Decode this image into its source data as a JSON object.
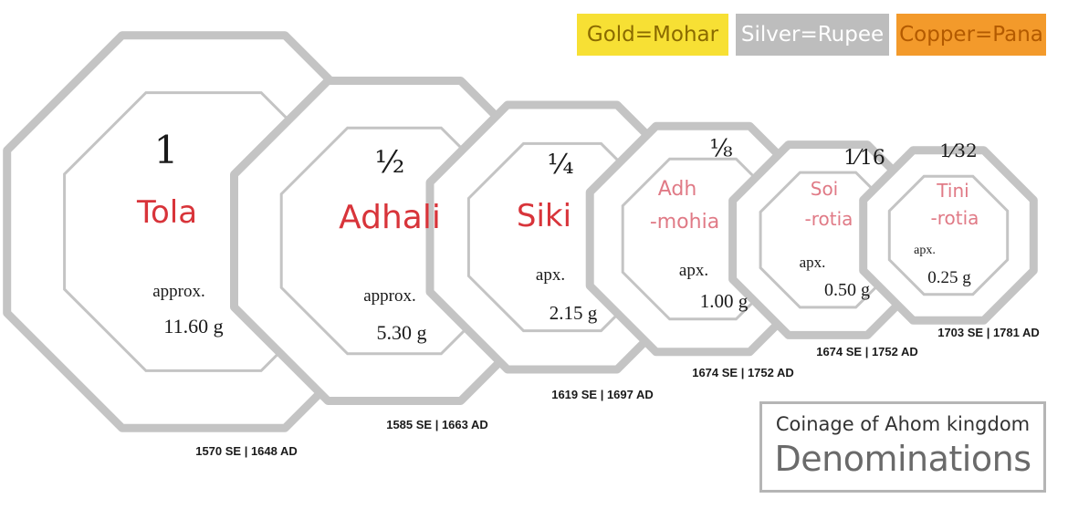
{
  "legend": [
    {
      "label": "Gold=Mohar",
      "bg": "#f7e034",
      "fg": "#8a6a00"
    },
    {
      "label": "Silver=Rupee",
      "bg": "#bdbdbd",
      "fg": "#ffffff"
    },
    {
      "label": "Copper=Pana",
      "bg": "#f39a2b",
      "fg": "#b35a00"
    }
  ],
  "coins": [
    {
      "fraction": "1",
      "name": [
        "Tola"
      ],
      "weight_label": "approx.",
      "weight": "11.60 g",
      "date": "1570 SE | 1648 AD"
    },
    {
      "fraction": "½",
      "name": [
        "Adhali"
      ],
      "weight_label": "approx.",
      "weight": "5.30 g",
      "date": "1585 SE | 1663 AD"
    },
    {
      "fraction": "¼",
      "name": [
        "Siki"
      ],
      "weight_label": "apx.",
      "weight": "2.15 g",
      "date": "1619 SE | 1697 AD"
    },
    {
      "fraction": "⅛",
      "name": [
        "Adh",
        "-mohia"
      ],
      "weight_label": "apx.",
      "weight": "1.00 g",
      "date": "1674 SE | 1752 AD"
    },
    {
      "fraction": "1⁄16",
      "name": [
        "Soi",
        "-rotia"
      ],
      "weight_label": "apx.",
      "weight": "0.50 g",
      "date": "1674 SE | 1752 AD"
    },
    {
      "fraction": "1⁄32",
      "name": [
        "Tini",
        "-rotia"
      ],
      "weight_label": "apx.",
      "weight": "0.25 g",
      "date": "1703 SE | 1781 AD"
    }
  ],
  "title": {
    "line1": "Coinage of Ahom kingdom",
    "line2": "Denominations"
  },
  "colors": {
    "outline": "#c4c4c4",
    "name": "#d8343a",
    "name_light": "#e07a86",
    "text": "#1a1a1a"
  }
}
